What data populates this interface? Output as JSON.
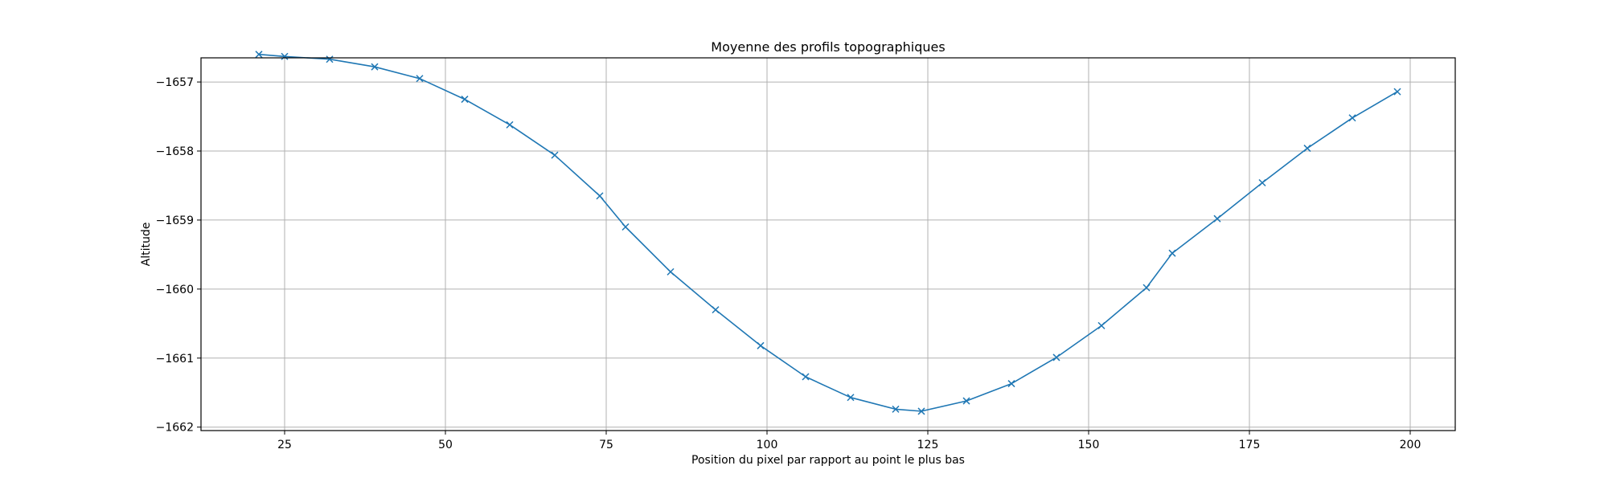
{
  "chart_data": {
    "type": "line",
    "title": "Moyenne des profils topographiques",
    "xlabel": "Position du pixel par rapport au point le plus bas",
    "ylabel": "Altitude",
    "xlim": [
      12,
      207
    ],
    "ylim": [
      -1662.05,
      -1656.65
    ],
    "xticks": [
      25,
      50,
      75,
      100,
      125,
      150,
      175,
      200
    ],
    "yticks": [
      -1657,
      -1658,
      -1659,
      -1660,
      -1661,
      -1662
    ],
    "grid": true,
    "series": [
      {
        "color": "#1f77b4",
        "marker": "x",
        "x": [
          21,
          25,
          32,
          39,
          46,
          53,
          60,
          67,
          74,
          78,
          85,
          92,
          99,
          106,
          113,
          120,
          124,
          131,
          138,
          145,
          152,
          159,
          163,
          170,
          177,
          184,
          191,
          198
        ],
        "y": [
          -1656.6,
          -1656.63,
          -1656.67,
          -1656.78,
          -1656.95,
          -1657.25,
          -1657.62,
          -1658.06,
          -1658.65,
          -1659.1,
          -1659.75,
          -1660.3,
          -1660.82,
          -1661.27,
          -1661.57,
          -1661.74,
          -1661.77,
          -1661.62,
          -1661.37,
          -1660.99,
          -1660.53,
          -1659.98,
          -1659.48,
          -1658.98,
          -1658.46,
          -1657.96,
          -1657.52,
          -1657.14
        ]
      }
    ]
  }
}
